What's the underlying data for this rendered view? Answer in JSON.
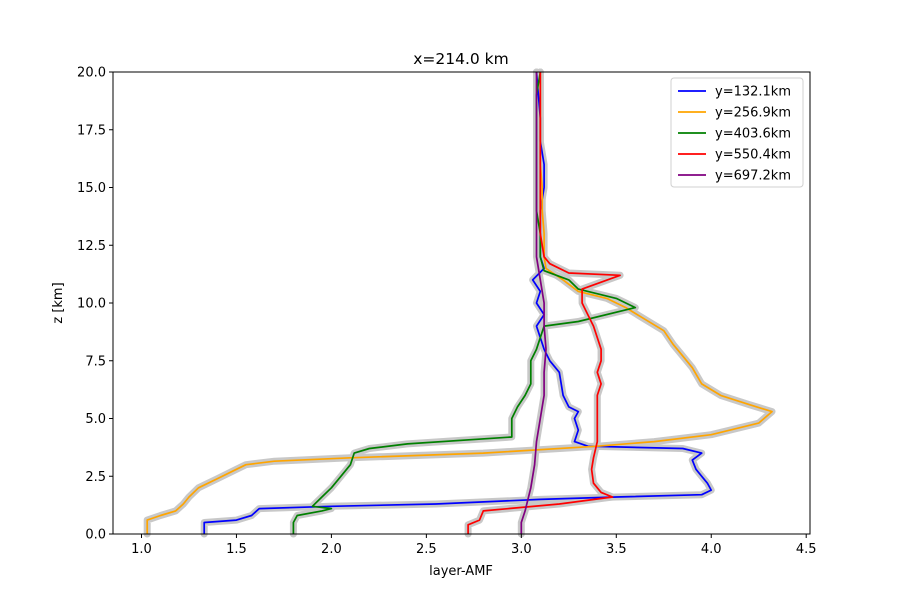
{
  "chart_data": {
    "type": "line",
    "title": "x=214.0 km",
    "xlabel": "layer-AMF",
    "ylabel": "z [km]",
    "xlim": [
      0.85,
      4.52
    ],
    "ylim": [
      0,
      20
    ],
    "xticks": [
      1.0,
      1.5,
      2.0,
      2.5,
      3.0,
      3.5,
      4.0,
      4.5
    ],
    "xtick_labels": [
      "1.0",
      "1.5",
      "2.0",
      "2.5",
      "3.0",
      "3.5",
      "4.0",
      "4.5"
    ],
    "yticks": [
      0,
      2.5,
      5,
      7.5,
      10,
      12.5,
      15,
      17.5,
      20
    ],
    "ytick_labels": [
      "0.0",
      "2.5",
      "5.0",
      "7.5",
      "10.0",
      "12.5",
      "15.0",
      "17.5",
      "20.0"
    ],
    "grid": false,
    "legend": "top-right",
    "uncertainty_band_color": "#c8c8c8",
    "series": [
      {
        "name": "y=132.1km",
        "color": "#0000ff",
        "points": [
          [
            1.33,
            0.0
          ],
          [
            1.33,
            0.5
          ],
          [
            1.5,
            0.6
          ],
          [
            1.58,
            0.8
          ],
          [
            1.62,
            1.1
          ],
          [
            2.0,
            1.2
          ],
          [
            2.55,
            1.3
          ],
          [
            3.1,
            1.5
          ],
          [
            3.5,
            1.6
          ],
          [
            3.95,
            1.7
          ],
          [
            4.0,
            1.9
          ],
          [
            3.98,
            2.2
          ],
          [
            3.95,
            2.5
          ],
          [
            3.92,
            2.8
          ],
          [
            3.9,
            3.2
          ],
          [
            3.95,
            3.5
          ],
          [
            3.85,
            3.7
          ],
          [
            3.35,
            3.8
          ],
          [
            3.28,
            4.0
          ],
          [
            3.3,
            4.5
          ],
          [
            3.28,
            5.0
          ],
          [
            3.3,
            5.3
          ],
          [
            3.25,
            5.5
          ],
          [
            3.22,
            6.0
          ],
          [
            3.2,
            7.0
          ],
          [
            3.15,
            7.5
          ],
          [
            3.12,
            8.0
          ],
          [
            3.1,
            8.5
          ],
          [
            3.08,
            9.0
          ],
          [
            3.12,
            9.5
          ],
          [
            3.08,
            10.0
          ],
          [
            3.1,
            10.5
          ],
          [
            3.06,
            11.0
          ],
          [
            3.12,
            11.5
          ],
          [
            3.1,
            12.0
          ],
          [
            3.1,
            13.0
          ],
          [
            3.1,
            14.0
          ],
          [
            3.12,
            15.0
          ],
          [
            3.12,
            16.0
          ],
          [
            3.1,
            17.0
          ],
          [
            3.1,
            18.0
          ],
          [
            3.09,
            19.0
          ],
          [
            3.08,
            20.0
          ]
        ]
      },
      {
        "name": "y=256.9km",
        "color": "#ffa500",
        "points": [
          [
            1.03,
            0.0
          ],
          [
            1.03,
            0.6
          ],
          [
            1.1,
            0.8
          ],
          [
            1.18,
            1.0
          ],
          [
            1.22,
            1.3
          ],
          [
            1.25,
            1.6
          ],
          [
            1.3,
            2.0
          ],
          [
            1.4,
            2.4
          ],
          [
            1.5,
            2.8
          ],
          [
            1.55,
            3.0
          ],
          [
            1.7,
            3.15
          ],
          [
            2.1,
            3.3
          ],
          [
            2.8,
            3.5
          ],
          [
            3.4,
            3.8
          ],
          [
            3.7,
            4.0
          ],
          [
            4.0,
            4.3
          ],
          [
            4.25,
            4.8
          ],
          [
            4.32,
            5.3
          ],
          [
            4.2,
            5.6
          ],
          [
            4.05,
            6.0
          ],
          [
            3.95,
            6.5
          ],
          [
            3.9,
            7.2
          ],
          [
            3.85,
            7.7
          ],
          [
            3.8,
            8.2
          ],
          [
            3.75,
            8.8
          ],
          [
            3.65,
            9.3
          ],
          [
            3.55,
            9.8
          ],
          [
            3.45,
            10.2
          ],
          [
            3.3,
            10.5
          ],
          [
            3.22,
            11.0
          ],
          [
            3.13,
            11.5
          ],
          [
            3.12,
            12.0
          ],
          [
            3.12,
            13.0
          ],
          [
            3.11,
            14.0
          ],
          [
            3.11,
            15.0
          ],
          [
            3.1,
            16.0
          ],
          [
            3.1,
            17.0
          ],
          [
            3.1,
            18.0
          ],
          [
            3.1,
            19.0
          ],
          [
            3.1,
            20.0
          ]
        ]
      },
      {
        "name": "y=403.6km",
        "color": "#008000",
        "points": [
          [
            1.8,
            0.0
          ],
          [
            1.8,
            0.5
          ],
          [
            1.82,
            0.8
          ],
          [
            1.95,
            1.0
          ],
          [
            2.0,
            1.1
          ],
          [
            1.9,
            1.2
          ],
          [
            1.95,
            1.6
          ],
          [
            2.0,
            2.0
          ],
          [
            2.05,
            2.5
          ],
          [
            2.1,
            3.0
          ],
          [
            2.12,
            3.5
          ],
          [
            2.2,
            3.7
          ],
          [
            2.4,
            3.9
          ],
          [
            2.95,
            4.2
          ],
          [
            2.95,
            5.0
          ],
          [
            2.98,
            5.5
          ],
          [
            3.02,
            6.0
          ],
          [
            3.05,
            6.5
          ],
          [
            3.05,
            7.0
          ],
          [
            3.05,
            7.5
          ],
          [
            3.08,
            8.0
          ],
          [
            3.1,
            8.5
          ],
          [
            3.12,
            9.0
          ],
          [
            3.3,
            9.2
          ],
          [
            3.6,
            9.8
          ],
          [
            3.5,
            10.2
          ],
          [
            3.3,
            10.6
          ],
          [
            3.25,
            11.0
          ],
          [
            3.12,
            11.4
          ],
          [
            3.1,
            12.0
          ],
          [
            3.1,
            13.0
          ],
          [
            3.08,
            14.0
          ],
          [
            3.08,
            15.0
          ],
          [
            3.08,
            16.0
          ],
          [
            3.08,
            17.0
          ],
          [
            3.08,
            18.0
          ],
          [
            3.08,
            19.0
          ],
          [
            3.1,
            20.0
          ]
        ]
      },
      {
        "name": "y=550.4km",
        "color": "#ff0000",
        "points": [
          [
            2.72,
            0.0
          ],
          [
            2.72,
            0.4
          ],
          [
            2.78,
            0.6
          ],
          [
            2.8,
            1.0
          ],
          [
            3.2,
            1.3
          ],
          [
            3.48,
            1.6
          ],
          [
            3.42,
            1.8
          ],
          [
            3.38,
            2.2
          ],
          [
            3.37,
            2.8
          ],
          [
            3.38,
            3.3
          ],
          [
            3.4,
            4.0
          ],
          [
            3.4,
            4.5
          ],
          [
            3.4,
            5.0
          ],
          [
            3.4,
            5.5
          ],
          [
            3.4,
            6.0
          ],
          [
            3.42,
            6.5
          ],
          [
            3.4,
            7.0
          ],
          [
            3.42,
            7.5
          ],
          [
            3.42,
            8.0
          ],
          [
            3.4,
            8.5
          ],
          [
            3.38,
            9.0
          ],
          [
            3.35,
            9.5
          ],
          [
            3.32,
            10.0
          ],
          [
            3.32,
            10.6
          ],
          [
            3.52,
            11.2
          ],
          [
            3.25,
            11.3
          ],
          [
            3.15,
            11.7
          ],
          [
            3.12,
            12.0
          ],
          [
            3.1,
            13.0
          ],
          [
            3.1,
            14.0
          ],
          [
            3.1,
            15.0
          ],
          [
            3.1,
            16.0
          ],
          [
            3.1,
            17.0
          ],
          [
            3.1,
            18.0
          ],
          [
            3.1,
            19.0
          ],
          [
            3.1,
            20.0
          ]
        ]
      },
      {
        "name": "y=697.2km",
        "color": "#800080",
        "points": [
          [
            3.0,
            0.0
          ],
          [
            3.0,
            0.5
          ],
          [
            3.02,
            1.0
          ],
          [
            3.05,
            2.0
          ],
          [
            3.07,
            3.0
          ],
          [
            3.08,
            4.0
          ],
          [
            3.1,
            5.0
          ],
          [
            3.12,
            6.0
          ],
          [
            3.12,
            7.0
          ],
          [
            3.13,
            8.0
          ],
          [
            3.12,
            9.0
          ],
          [
            3.12,
            10.0
          ],
          [
            3.1,
            11.0
          ],
          [
            3.08,
            12.0
          ],
          [
            3.08,
            13.0
          ],
          [
            3.08,
            14.0
          ],
          [
            3.08,
            15.0
          ],
          [
            3.08,
            16.0
          ],
          [
            3.08,
            17.0
          ],
          [
            3.08,
            18.0
          ],
          [
            3.08,
            19.0
          ],
          [
            3.08,
            20.0
          ]
        ]
      }
    ]
  }
}
